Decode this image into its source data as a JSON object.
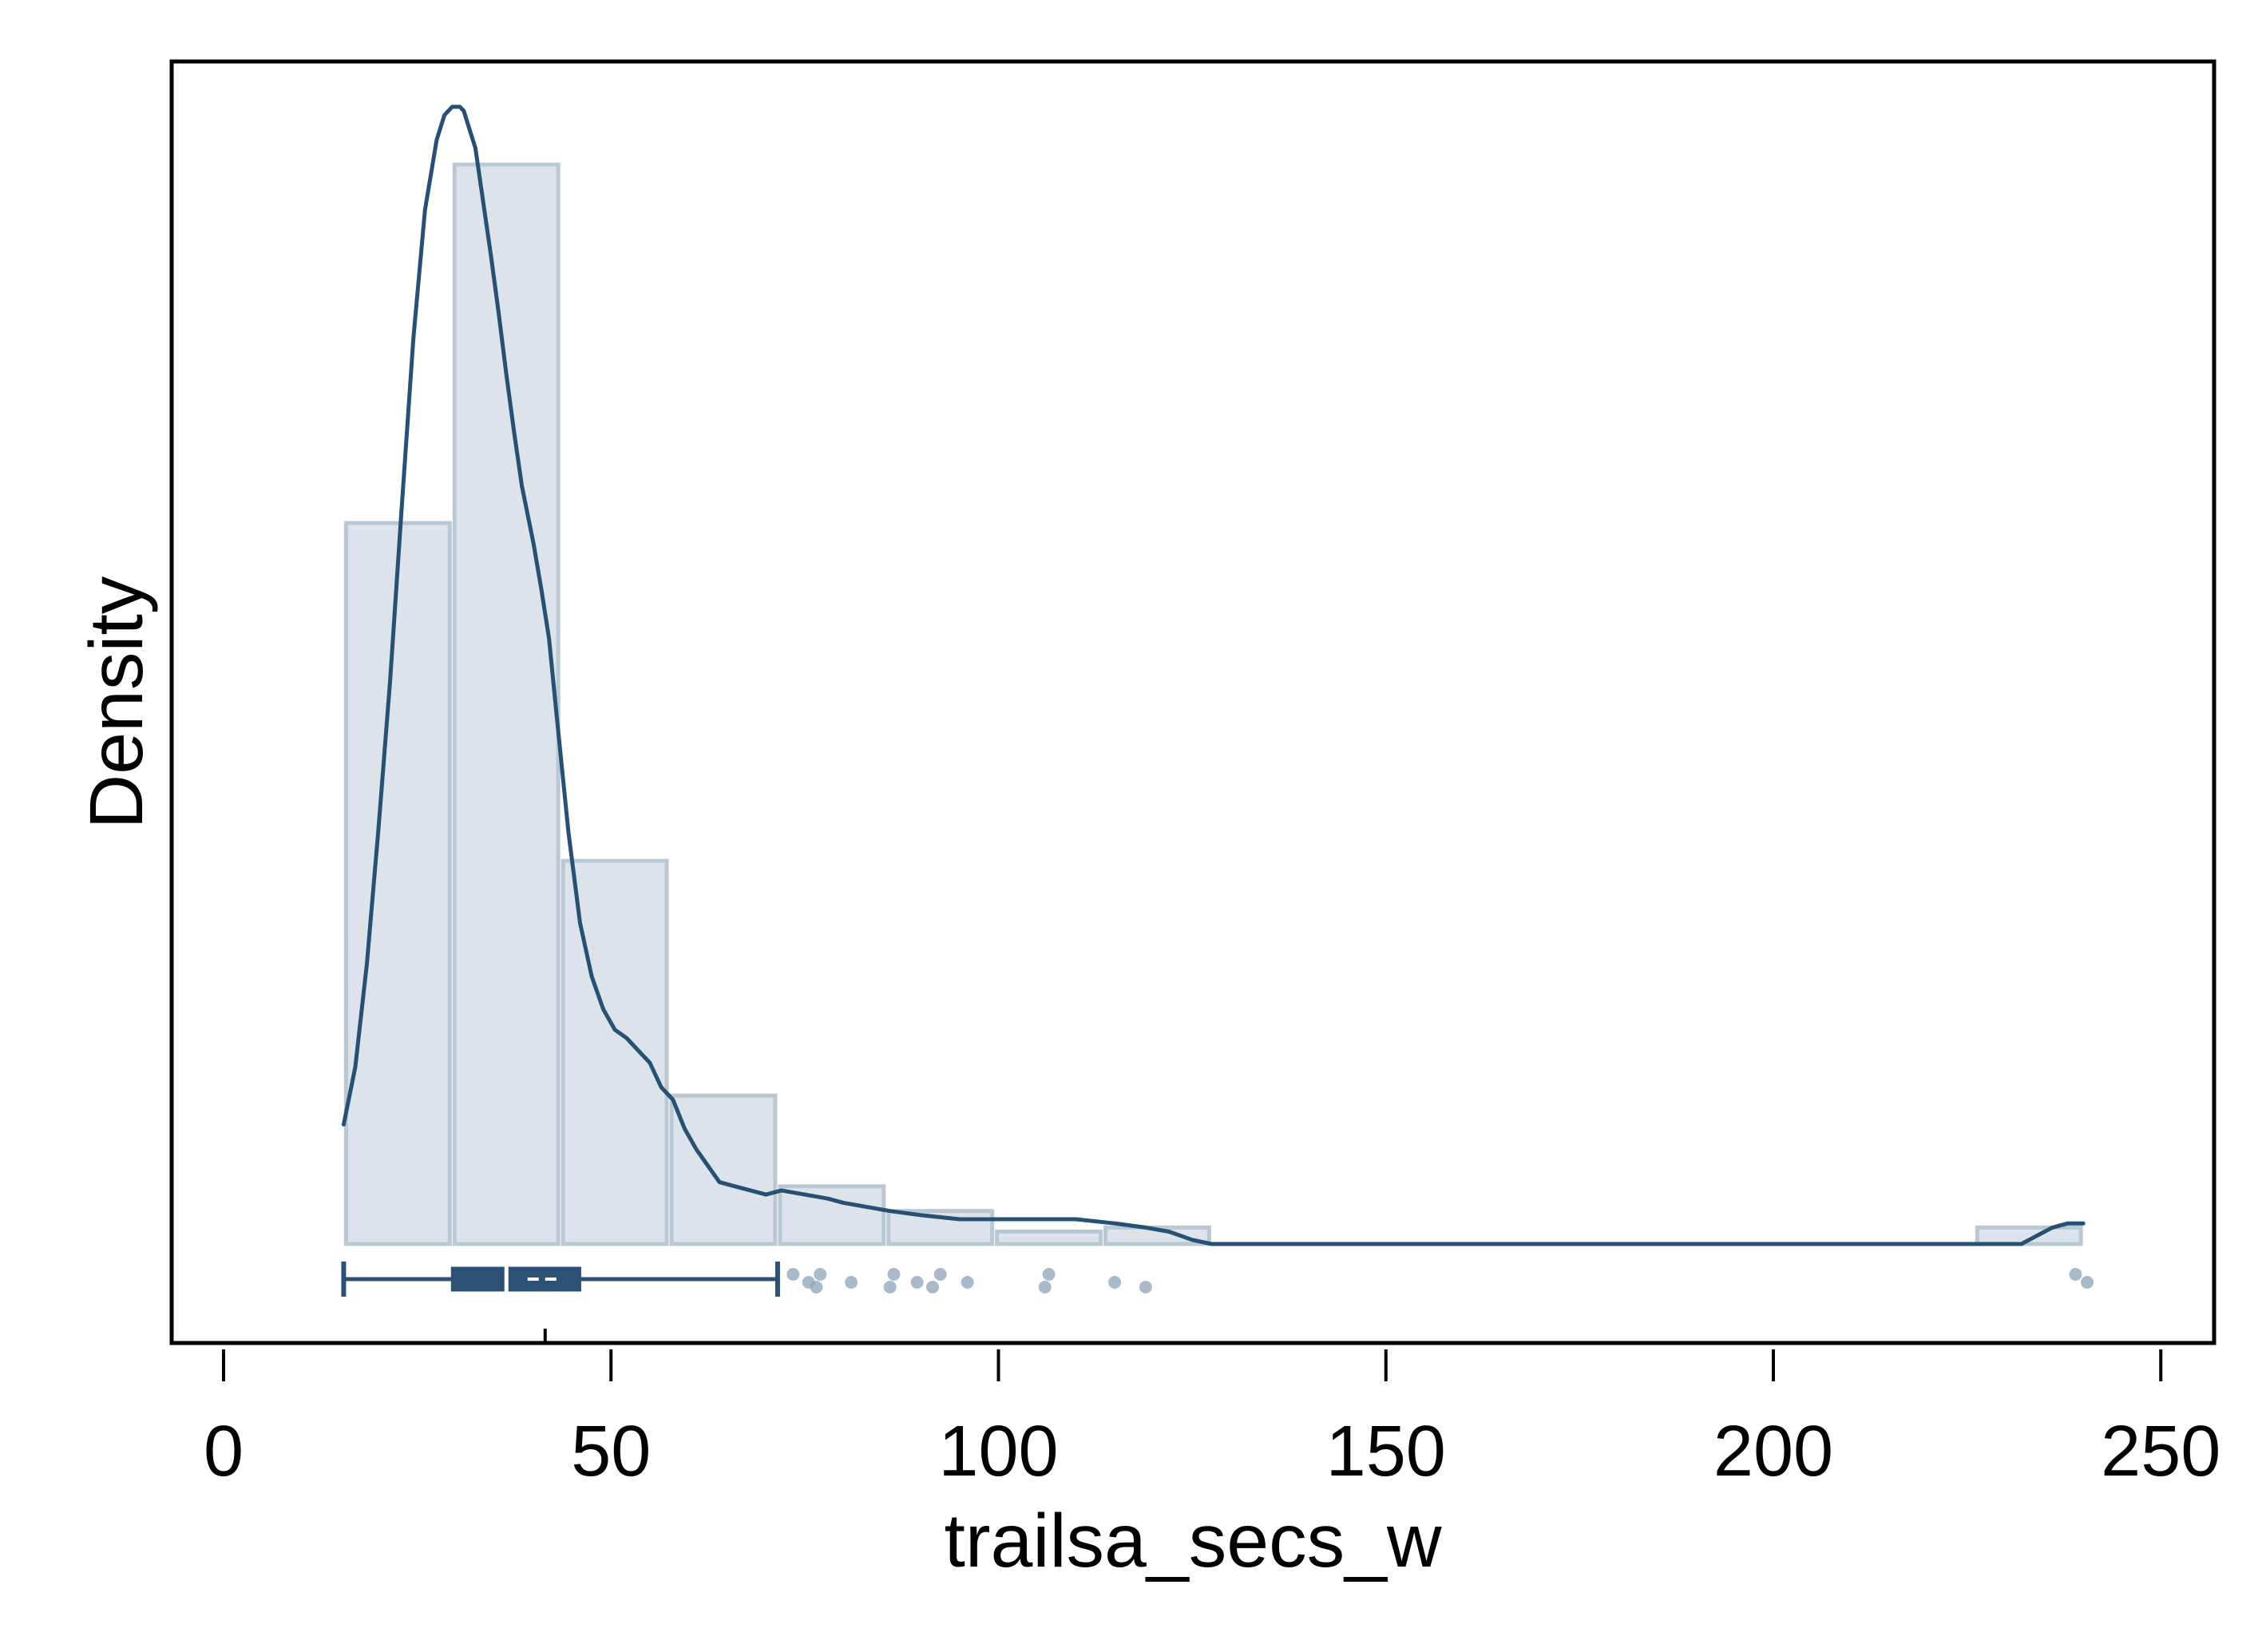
{
  "chart_data": {
    "type": "histogram",
    "title": "",
    "xlabel": "trailsa_secs_w",
    "ylabel": "Density",
    "xlim": [
      -7,
      257
    ],
    "x_ticks": [
      0,
      50,
      100,
      150,
      200,
      250
    ],
    "y_ticks": [],
    "grid": false,
    "legend": "none",
    "colors": {
      "bar_fill": "#dce3ea",
      "bar_edge": "#b9c8d3",
      "line": "#284f74",
      "box": "#2d5075",
      "outlier": "#93a9bd",
      "frame": "#000000"
    },
    "histogram": {
      "bins": [
        {
          "start": 15.5,
          "end": 29.5,
          "density": 0.0175
        },
        {
          "start": 29.5,
          "end": 43.5,
          "density": 0.0262
        },
        {
          "start": 43.5,
          "end": 57.5,
          "density": 0.0093
        },
        {
          "start": 57.5,
          "end": 71.5,
          "density": 0.0036
        },
        {
          "start": 71.5,
          "end": 85.5,
          "density": 0.0014
        },
        {
          "start": 85.5,
          "end": 99.5,
          "density": 0.0008
        },
        {
          "start": 99.5,
          "end": 113.5,
          "density": 0.0003
        },
        {
          "start": 113.5,
          "end": 127.5,
          "density": 0.0004
        },
        {
          "start": 226,
          "end": 240,
          "density": 0.0004
        }
      ]
    },
    "kde": {
      "x": [
        15.5,
        17,
        18.5,
        20,
        21.5,
        23,
        24.5,
        26,
        27.5,
        28.5,
        29.5,
        30.5,
        31,
        31.5,
        32.5,
        33.5,
        34.5,
        35.5,
        36.5,
        37.5,
        38.5,
        40,
        41,
        42,
        43,
        44.5,
        46,
        47.5,
        49,
        50.5,
        52,
        53.5,
        55,
        56.5,
        58,
        59.5,
        61,
        62.5,
        64,
        66,
        68,
        70,
        72,
        75,
        78,
        80,
        83,
        86,
        90,
        95,
        100,
        105,
        110,
        115,
        119,
        122,
        125,
        127.5,
        140,
        160,
        180,
        200,
        220,
        232,
        234,
        236,
        238,
        240
      ],
      "y": [
        0.0029,
        0.0043,
        0.0068,
        0.0101,
        0.0137,
        0.0179,
        0.022,
        0.0251,
        0.0268,
        0.0274,
        0.0276,
        0.0276,
        0.0275,
        0.0272,
        0.0266,
        0.0253,
        0.024,
        0.0226,
        0.0211,
        0.0197,
        0.0184,
        0.017,
        0.0159,
        0.0147,
        0.0128,
        0.01,
        0.0078,
        0.0065,
        0.0057,
        0.0052,
        0.005,
        0.0047,
        0.0044,
        0.0038,
        0.0035,
        0.0028,
        0.0023,
        0.0019,
        0.0015,
        0.0014,
        0.0013,
        0.0012,
        0.0013,
        0.0012,
        0.0011,
        0.001,
        0.0009,
        0.0008,
        0.0007,
        0.0006,
        0.0006,
        0.0006,
        0.0006,
        0.0005,
        0.0004,
        0.0003,
        0.0001,
        0.0,
        0.0,
        0.0,
        0.0,
        0.0,
        0.0,
        0.0,
        0.0002,
        0.0004,
        0.0005,
        0.0005
      ]
    },
    "boxplot": {
      "whisker_low": 15.5,
      "q1": 29.5,
      "median": 36.5,
      "mean": 41.5,
      "q3": 46,
      "whisker_high": 71.5,
      "outliers": [
        73.5,
        75.5,
        76.5,
        77,
        81,
        86,
        86.5,
        89.5,
        91.5,
        92.5,
        96,
        106,
        106.5,
        115,
        119,
        239,
        240.5
      ]
    }
  }
}
